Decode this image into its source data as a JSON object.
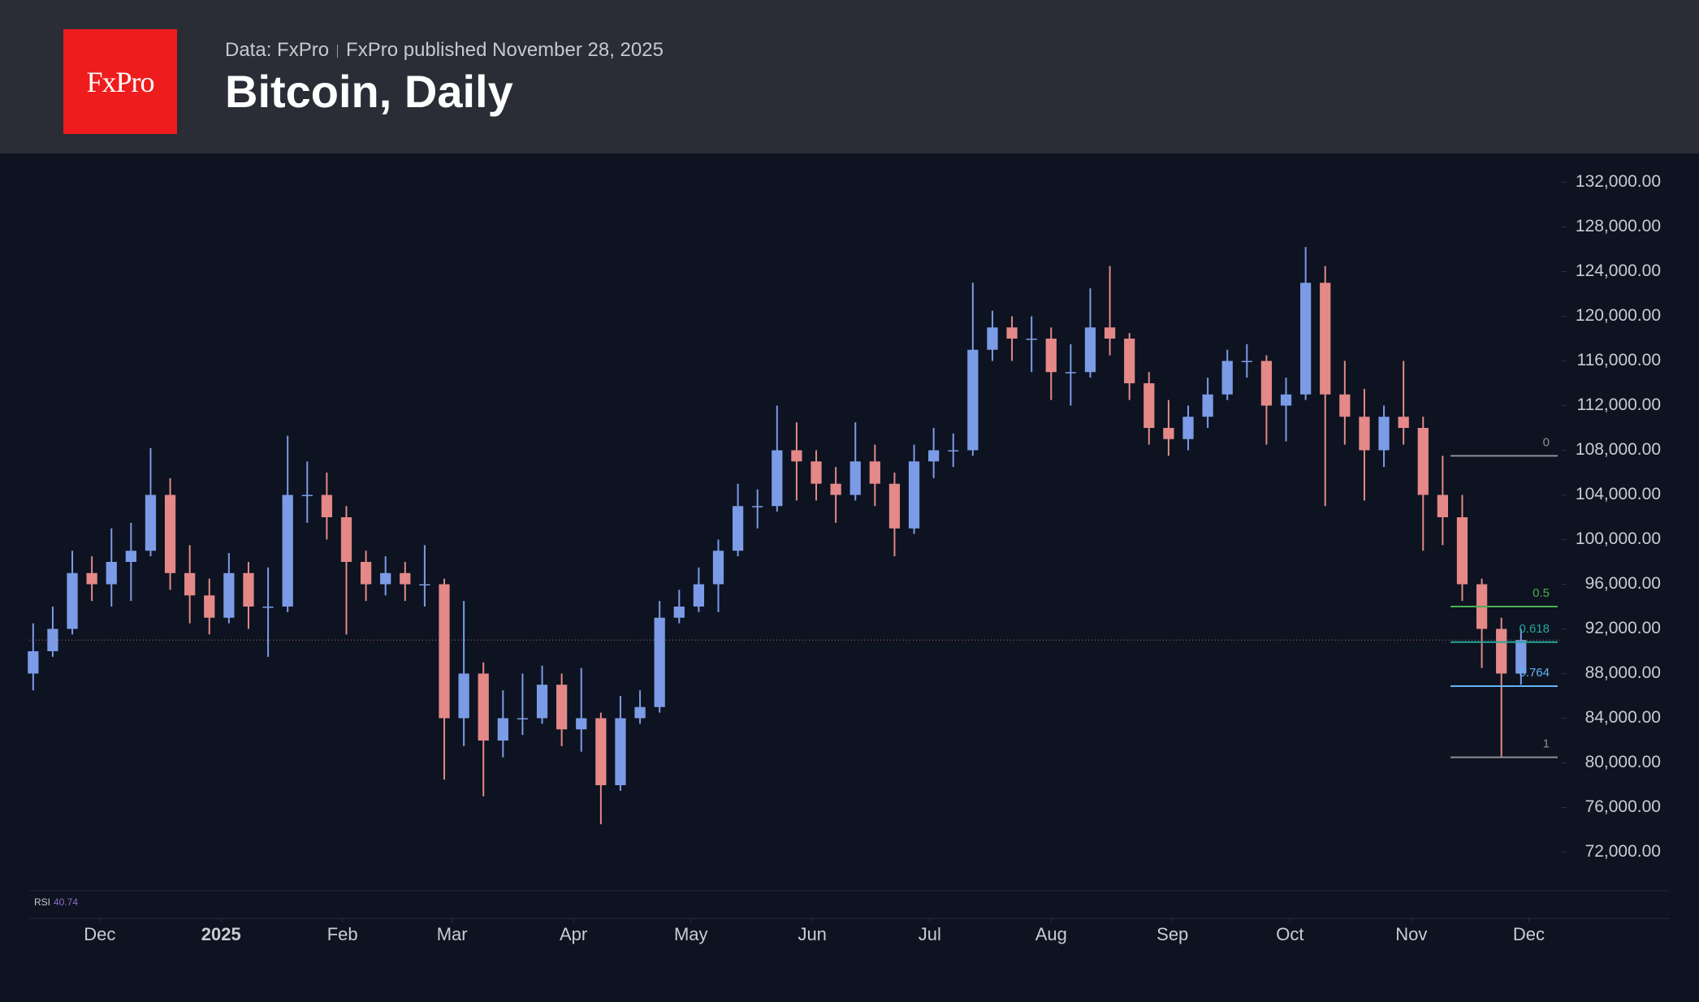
{
  "header": {
    "logo": "FxPro",
    "source": "Data: FxPro",
    "published": "FxPro published November 28, 2025"
  },
  "chart_data": {
    "type": "candlestick",
    "title": "Bitcoin, Daily",
    "categories": [
      null,
      null,
      null,
      null,
      null,
      null,
      null,
      null,
      null,
      null,
      null,
      null,
      null,
      null,
      null,
      null,
      null,
      null,
      null,
      null,
      null,
      null,
      null,
      null,
      null,
      null,
      null,
      null,
      null,
      null,
      null,
      null,
      null,
      null,
      null,
      null,
      null,
      null,
      null,
      null,
      null,
      null,
      null,
      null,
      null,
      null,
      null,
      null,
      null,
      null,
      null,
      null,
      null,
      null,
      null,
      null,
      null,
      null,
      null,
      null,
      null,
      null,
      null,
      null,
      null,
      null,
      null,
      null,
      null,
      null,
      null,
      null,
      null,
      null,
      null,
      null,
      null
    ],
    "open": [
      88000,
      90000,
      92000,
      97000,
      96000,
      98000,
      99000,
      104000,
      97000,
      95000,
      93000,
      97000,
      94000,
      94000,
      104000,
      104000,
      102000,
      98000,
      96000,
      97000,
      96000,
      96000,
      84000,
      88000,
      82000,
      84000,
      84000,
      87000,
      83000,
      84000,
      78000,
      84000,
      85000,
      93000,
      94000,
      96000,
      99000,
      103000,
      103000,
      108000,
      107000,
      105000,
      104000,
      107000,
      105000,
      101000,
      107000,
      108000,
      108000,
      117000,
      119000,
      118000,
      118000,
      115000,
      115000,
      119000,
      118000,
      114000,
      110000,
      109000,
      111000,
      113000,
      116000,
      116000,
      112000,
      113000,
      123000,
      113000,
      111000,
      108000,
      111000,
      110000,
      104000,
      102000,
      96000,
      92000,
      88000
    ],
    "high": [
      92500,
      94000,
      99000,
      98500,
      101000,
      101500,
      108200,
      105500,
      99500,
      96500,
      98800,
      98000,
      97500,
      109300,
      107000,
      106000,
      103000,
      99000,
      98500,
      98000,
      99500,
      96500,
      94500,
      89000,
      86500,
      88000,
      88700,
      88000,
      88500,
      84500,
      86000,
      86500,
      94500,
      95500,
      97500,
      100000,
      105000,
      104500,
      112000,
      110500,
      108000,
      106500,
      110500,
      108500,
      106000,
      108500,
      110000,
      109500,
      123000,
      120500,
      120000,
      120000,
      119000,
      117500,
      122500,
      124500,
      118500,
      115000,
      112500,
      112000,
      114500,
      117000,
      117500,
      116500,
      114500,
      126200,
      124500,
      116000,
      113500,
      112000,
      116000,
      111000,
      107500,
      104000,
      96500,
      93000,
      92000
    ],
    "low": [
      86500,
      89500,
      91500,
      94500,
      94000,
      94500,
      98500,
      95500,
      92500,
      91500,
      92500,
      92000,
      89500,
      93500,
      101500,
      100000,
      91500,
      94500,
      95000,
      94500,
      94000,
      78500,
      81500,
      77000,
      80500,
      82500,
      83500,
      81500,
      81000,
      74500,
      77500,
      83500,
      84500,
      92500,
      93500,
      93500,
      98500,
      101000,
      102500,
      103500,
      103500,
      101500,
      103500,
      103000,
      98500,
      100500,
      105500,
      106500,
      107500,
      116000,
      116000,
      115000,
      112500,
      112000,
      114500,
      116500,
      112500,
      108500,
      107500,
      108000,
      110000,
      112500,
      114500,
      108500,
      108800,
      112500,
      103000,
      108500,
      103500,
      106500,
      108500,
      99000,
      99500,
      94500,
      88500,
      80500,
      87000
    ],
    "close": [
      90000,
      92000,
      97000,
      96000,
      98000,
      99000,
      104000,
      97000,
      95000,
      93000,
      97000,
      94000,
      94000,
      104000,
      104000,
      102000,
      98000,
      96000,
      97000,
      96000,
      96000,
      84000,
      88000,
      82000,
      84000,
      84000,
      87000,
      83000,
      84000,
      78000,
      84000,
      85000,
      93000,
      94000,
      96000,
      99000,
      103000,
      103000,
      108000,
      107000,
      105000,
      104000,
      107000,
      105000,
      101000,
      107000,
      108000,
      108000,
      117000,
      119000,
      118000,
      118000,
      115000,
      115000,
      119000,
      118000,
      114000,
      110000,
      109000,
      111000,
      113000,
      116000,
      116000,
      112000,
      113000,
      123000,
      113000,
      111000,
      108000,
      111000,
      110000,
      104000,
      102000,
      96000,
      92000,
      88000,
      91000
    ],
    "up_color": "#7b9be6",
    "down_color": "#e48888",
    "xlim": [
      -0.2,
      78
    ],
    "xticks": [
      {
        "value": 3.4,
        "label": "Dec"
      },
      {
        "value": 9.6,
        "label": "2025"
      },
      {
        "value": 15.8,
        "label": "Feb"
      },
      {
        "value": 21.4,
        "label": "Mar"
      },
      {
        "value": 27.6,
        "label": "Apr"
      },
      {
        "value": 33.6,
        "label": "May"
      },
      {
        "value": 39.8,
        "label": "Jun"
      },
      {
        "value": 45.8,
        "label": "Jul"
      },
      {
        "value": 52,
        "label": "Aug"
      },
      {
        "value": 58.2,
        "label": "Sep"
      },
      {
        "value": 64.2,
        "label": "Oct"
      },
      {
        "value": 70.4,
        "label": "Nov"
      },
      {
        "value": 76.4,
        "label": "Dec"
      }
    ],
    "ylim": [
      70000,
      134000
    ],
    "yticks": [
      {
        "value": 72000,
        "label": "72,000.00"
      },
      {
        "value": 76000,
        "label": "76,000.00"
      },
      {
        "value": 80000,
        "label": "80,000.00"
      },
      {
        "value": 84000,
        "label": "84,000.00"
      },
      {
        "value": 88000,
        "label": "88,000.00"
      },
      {
        "value": 92000,
        "label": "92,000.00"
      },
      {
        "value": 96000,
        "label": "96,000.00"
      },
      {
        "value": 100000,
        "label": "100,000.00"
      },
      {
        "value": 104000,
        "label": "104,000.00"
      },
      {
        "value": 108000,
        "label": "108,000.00"
      },
      {
        "value": 112000,
        "label": "112,000.00"
      },
      {
        "value": 116000,
        "label": "116,000.00"
      },
      {
        "value": 120000,
        "label": "120,000.00"
      },
      {
        "value": 124000,
        "label": "124,000.00"
      },
      {
        "value": 128000,
        "label": "128,000.00"
      },
      {
        "value": 132000,
        "label": "132,000.00"
      }
    ],
    "fib": [
      {
        "ratio": 0,
        "value": 107500,
        "color": "#8c8f98"
      },
      {
        "ratio": 0.5,
        "value": 94000,
        "color": "#4caf50"
      },
      {
        "ratio": 0.618,
        "value": 90814,
        "color": "#26a69a"
      },
      {
        "ratio": 0.764,
        "value": 86872,
        "color": "#64b5f6"
      },
      {
        "ratio": 1,
        "value": 80500,
        "color": "#8c8f98"
      }
    ],
    "rsi": {
      "label": "RSI",
      "value": 40.74
    }
  }
}
